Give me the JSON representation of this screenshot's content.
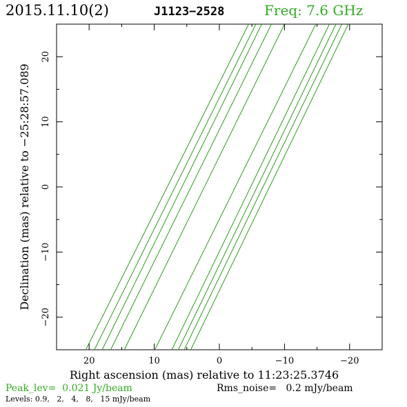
{
  "header": {
    "date": "2015.11.10(2)",
    "source": "J1123−2528",
    "freq": "Freq: 7.6 GHz"
  },
  "footer": {
    "peak": "Peak_lev=  0.021 Jy/beam",
    "rms": "Rms_noise=   0.2 mJy/beam",
    "levels": "Levels: 0.9,   2,   4,   8,   15 mJy/beam"
  },
  "colors": {
    "accent": "#33aa22",
    "contour": "#2e9a1e",
    "text": "#000000"
  },
  "chart_data": {
    "type": "contour",
    "title": "",
    "xlabel": "Right ascension (mas) relative to 11:23:25.3746",
    "ylabel": "Declination (mas) relative to −25:28:57.089",
    "xlim": [
      25,
      -25
    ],
    "ylim": [
      -25,
      25
    ],
    "x_inverted": true,
    "xticks": [
      20,
      10,
      0,
      -10,
      -20
    ],
    "yticks": [
      20,
      10,
      0,
      -10,
      -20
    ],
    "xtick_labels": [
      "20",
      "10",
      "0",
      "−10",
      "−20"
    ],
    "ytick_labels": [
      "20",
      "10",
      "0",
      "−10",
      "−20"
    ],
    "levels_mJy": [
      0.9,
      2,
      4,
      8,
      15
    ],
    "contour_lines": [
      {
        "x": [
          20.5,
          -4.5
        ],
        "y": [
          -25,
          25
        ]
      },
      {
        "x": [
          19.2,
          -5.6
        ],
        "y": [
          -25,
          25
        ]
      },
      {
        "x": [
          18.0,
          -6.5
        ],
        "y": [
          -25,
          25
        ]
      },
      {
        "x": [
          16.7,
          -8.0
        ],
        "y": [
          -25,
          25
        ]
      },
      {
        "x": [
          14.6,
          -10.0
        ],
        "y": [
          -25,
          25
        ]
      },
      {
        "x": [
          9.9,
          -14.8
        ],
        "y": [
          -25,
          25
        ]
      },
      {
        "x": [
          7.3,
          -16.9
        ],
        "y": [
          -25,
          25
        ]
      },
      {
        "x": [
          6.3,
          -17.9
        ],
        "y": [
          -25,
          25
        ]
      },
      {
        "x": [
          5.4,
          -18.8
        ],
        "y": [
          -25,
          25
        ]
      },
      {
        "x": [
          4.4,
          -19.8
        ],
        "y": [
          -25,
          25
        ]
      }
    ]
  }
}
